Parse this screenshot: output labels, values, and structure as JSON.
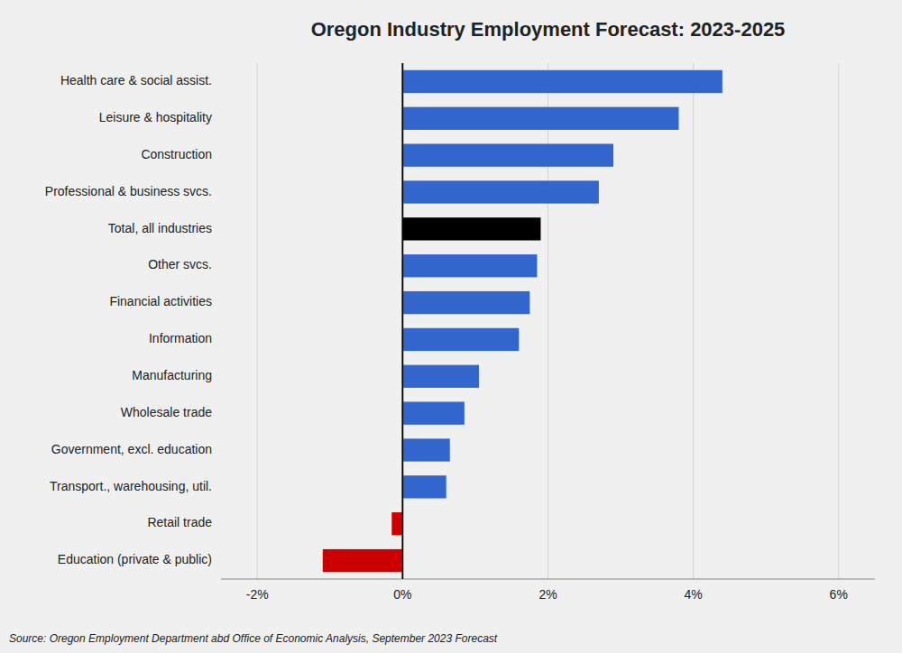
{
  "chart_data": {
    "type": "bar",
    "orientation": "horizontal",
    "title": "Oregon Industry Employment Forecast: 2023-2025",
    "categories": [
      "Health care & social assist.",
      "Leisure & hospitality",
      "Construction",
      "Professional & business svcs.",
      "Total, all industries",
      "Other svcs.",
      "Financial activities",
      "Information",
      "Manufacturing",
      "Wholesale trade",
      "Government, excl. education",
      "Transport., warehousing, util.",
      "Retail trade",
      "Education (private & public)"
    ],
    "values": [
      4.4,
      3.8,
      2.9,
      2.7,
      1.9,
      1.85,
      1.75,
      1.6,
      1.05,
      0.85,
      0.65,
      0.6,
      -0.15,
      -1.1
    ],
    "colors": [
      "#3366cc",
      "#3366cc",
      "#3366cc",
      "#3366cc",
      "#000000",
      "#3366cc",
      "#3366cc",
      "#3366cc",
      "#3366cc",
      "#3366cc",
      "#3366cc",
      "#3366cc",
      "#cc0000",
      "#cc0000"
    ],
    "xlim": [
      -2.5,
      6.5
    ],
    "xticks": [
      {
        "value": -2,
        "label": "-2%"
      },
      {
        "value": 0,
        "label": "0%"
      },
      {
        "value": 2,
        "label": "2%"
      },
      {
        "value": 4,
        "label": "4%"
      },
      {
        "value": 6,
        "label": "6%"
      }
    ],
    "grid": true,
    "annotations": [
      "Source: Oregon Employment Department abd Office of Economic Analysis, September 2023 Forecast"
    ]
  }
}
